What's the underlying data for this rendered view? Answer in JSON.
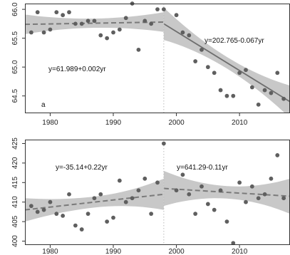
{
  "chart_data": [
    {
      "type": "scatter",
      "panel_label": "a",
      "xlim": [
        1976,
        2018
      ],
      "ylim": [
        64.2,
        66.1
      ],
      "x_ticks": [
        1980,
        1990,
        2000,
        2010
      ],
      "y_ticks": [
        64.5,
        65.0,
        65.5,
        66.0
      ],
      "y_tick_labels": [
        "64.5",
        "65.0",
        "65.5",
        "66.0"
      ],
      "breakpoint": 1998,
      "grid": false,
      "series": [
        {
          "points": [
            {
              "x": 1977,
              "y": 65.6
            },
            {
              "x": 1978,
              "y": 65.95
            },
            {
              "x": 1979,
              "y": 65.6
            },
            {
              "x": 1980,
              "y": 65.65
            },
            {
              "x": 1981,
              "y": 65.95
            },
            {
              "x": 1982,
              "y": 65.9
            },
            {
              "x": 1983,
              "y": 65.95
            },
            {
              "x": 1984,
              "y": 65.75
            },
            {
              "x": 1985,
              "y": 65.75
            },
            {
              "x": 1986,
              "y": 65.8
            },
            {
              "x": 1987,
              "y": 65.8
            },
            {
              "x": 1988,
              "y": 65.55
            },
            {
              "x": 1989,
              "y": 65.5
            },
            {
              "x": 1990,
              "y": 65.6
            },
            {
              "x": 1991,
              "y": 65.65
            },
            {
              "x": 1992,
              "y": 65.85
            },
            {
              "x": 1993,
              "y": 66.1
            },
            {
              "x": 1994,
              "y": 65.3
            },
            {
              "x": 1995,
              "y": 65.8
            },
            {
              "x": 1996,
              "y": 65.75
            },
            {
              "x": 1997,
              "y": 66.0
            },
            {
              "x": 1998,
              "y": 66.0
            },
            {
              "x": 2000,
              "y": 65.9
            },
            {
              "x": 2001,
              "y": 65.6
            },
            {
              "x": 2002,
              "y": 65.55
            },
            {
              "x": 2003,
              "y": 65.1
            },
            {
              "x": 2004,
              "y": 65.3
            },
            {
              "x": 2005,
              "y": 65.0
            },
            {
              "x": 2006,
              "y": 64.9
            },
            {
              "x": 2007,
              "y": 64.6
            },
            {
              "x": 2008,
              "y": 64.5
            },
            {
              "x": 2009,
              "y": 64.5
            },
            {
              "x": 2010,
              "y": 64.9
            },
            {
              "x": 2011,
              "y": 64.95
            },
            {
              "x": 2012,
              "y": 64.65
            },
            {
              "x": 2013,
              "y": 64.35
            },
            {
              "x": 2014,
              "y": 64.6
            },
            {
              "x": 2015,
              "y": 64.55
            },
            {
              "x": 2016,
              "y": 64.9
            },
            {
              "x": 2017,
              "y": 64.45
            }
          ]
        }
      ],
      "fits": [
        {
          "label": "y=61.989+0.002yr",
          "x0": 1976,
          "y0": 65.74,
          "x1": 1998,
          "y1": 65.78,
          "ci_lo": 0.17,
          "ci_hi": 0.17,
          "ci_mid": 0.08,
          "dashed": true
        },
        {
          "label": "y=202.765-0.067yr",
          "x0": 1998,
          "y0": 65.75,
          "x1": 2018,
          "y1": 64.4,
          "ci_lo": 0.28,
          "ci_hi": 0.28,
          "ci_mid": 0.1,
          "dashed": false
        }
      ]
    },
    {
      "type": "scatter",
      "panel_label": "",
      "xlim": [
        1976,
        2018
      ],
      "ylim": [
        399,
        426
      ],
      "x_ticks": [
        1980,
        1990,
        2000,
        2010
      ],
      "y_ticks": [
        400,
        405,
        410,
        415,
        420,
        425
      ],
      "y_tick_labels": [
        "400",
        "405",
        "410",
        "415",
        "420",
        "425"
      ],
      "breakpoint": 1998,
      "grid": false,
      "series": [
        {
          "points": [
            {
              "x": 1977,
              "y": 409
            },
            {
              "x": 1978,
              "y": 407.5
            },
            {
              "x": 1979,
              "y": 408
            },
            {
              "x": 1980,
              "y": 410
            },
            {
              "x": 1981,
              "y": 407
            },
            {
              "x": 1982,
              "y": 406.5
            },
            {
              "x": 1983,
              "y": 412
            },
            {
              "x": 1984,
              "y": 404
            },
            {
              "x": 1985,
              "y": 403
            },
            {
              "x": 1986,
              "y": 407
            },
            {
              "x": 1987,
              "y": 411
            },
            {
              "x": 1988,
              "y": 412
            },
            {
              "x": 1989,
              "y": 405
            },
            {
              "x": 1990,
              "y": 406
            },
            {
              "x": 1991,
              "y": 415.5
            },
            {
              "x": 1992,
              "y": 410
            },
            {
              "x": 1993,
              "y": 411
            },
            {
              "x": 1994,
              "y": 413
            },
            {
              "x": 1995,
              "y": 416
            },
            {
              "x": 1996,
              "y": 407
            },
            {
              "x": 1997,
              "y": 415
            },
            {
              "x": 1998,
              "y": 425
            },
            {
              "x": 2000,
              "y": 413
            },
            {
              "x": 2001,
              "y": 417
            },
            {
              "x": 2002,
              "y": 412
            },
            {
              "x": 2003,
              "y": 407
            },
            {
              "x": 2004,
              "y": 414
            },
            {
              "x": 2005,
              "y": 409.5
            },
            {
              "x": 2006,
              "y": 408
            },
            {
              "x": 2007,
              "y": 413
            },
            {
              "x": 2008,
              "y": 405
            },
            {
              "x": 2009,
              "y": 399.5
            },
            {
              "x": 2010,
              "y": 415
            },
            {
              "x": 2011,
              "y": 410
            },
            {
              "x": 2012,
              "y": 414
            },
            {
              "x": 2013,
              "y": 411
            },
            {
              "x": 2014,
              "y": 412
            },
            {
              "x": 2015,
              "y": 416
            },
            {
              "x": 2016,
              "y": 422
            },
            {
              "x": 2017,
              "y": 411
            }
          ]
        }
      ],
      "fits": [
        {
          "label": "y=-35.14+0.22yr",
          "x0": 1976,
          "y0": 408,
          "x1": 1998,
          "y1": 412,
          "ci_lo": 3.0,
          "ci_hi": 4.0,
          "ci_mid": 1.4,
          "dashed": true
        },
        {
          "label": "y=641.29-0.11yr",
          "x0": 1998,
          "y0": 413.5,
          "x1": 2018,
          "y1": 411.5,
          "ci_lo": 4.5,
          "ci_hi": 4.5,
          "ci_mid": 1.6,
          "dashed": true
        }
      ]
    }
  ]
}
